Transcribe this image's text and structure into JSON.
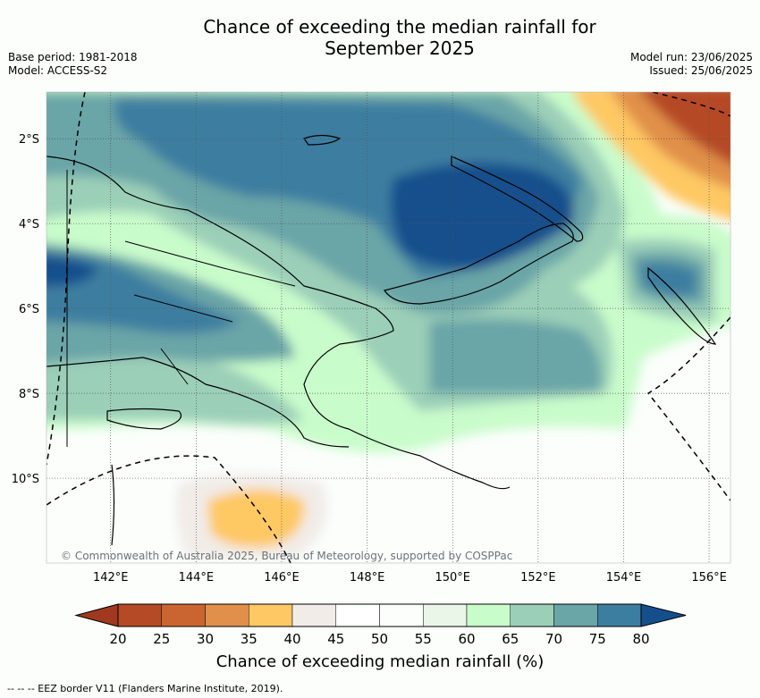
{
  "title_line1": "Chance of exceeding the median rainfall for",
  "title_line2": "September 2025",
  "base_period": "Base period: 1981-2018",
  "model": "Model: ACCESS-S2",
  "model_run": "Model run: 23/06/2025",
  "issued": "Issued: 25/06/2025",
  "attribution": "© Commonwealth of Australia 2025, Bureau of Meteorology, supported by COSPPac",
  "lat_labels": [
    "2°S",
    "4°S",
    "6°S",
    "8°S",
    "10°S"
  ],
  "lon_labels": [
    "142°E",
    "144°E",
    "146°E",
    "148°E",
    "150°E",
    "152°E",
    "154°E",
    "156°E"
  ],
  "colorbar": {
    "title": "Chance of exceeding median rainfall (%)",
    "ticks": [
      "20",
      "25",
      "30",
      "35",
      "40",
      "45",
      "50",
      "55",
      "60",
      "65",
      "70",
      "75",
      "80"
    ],
    "colors": [
      "#a0391f",
      "#b54a26",
      "#ca6531",
      "#e0904a",
      "#fec864",
      "#f1ece8",
      "#ffffff",
      "#fbfefb",
      "#eaf6e8",
      "#c9fccb",
      "#9bcfb8",
      "#6aa5a7",
      "#3c7ea0",
      "#144f8c"
    ]
  },
  "footer": "--  --  -- EEZ border V11 (Flanders Marine Institute, 2019)."
}
